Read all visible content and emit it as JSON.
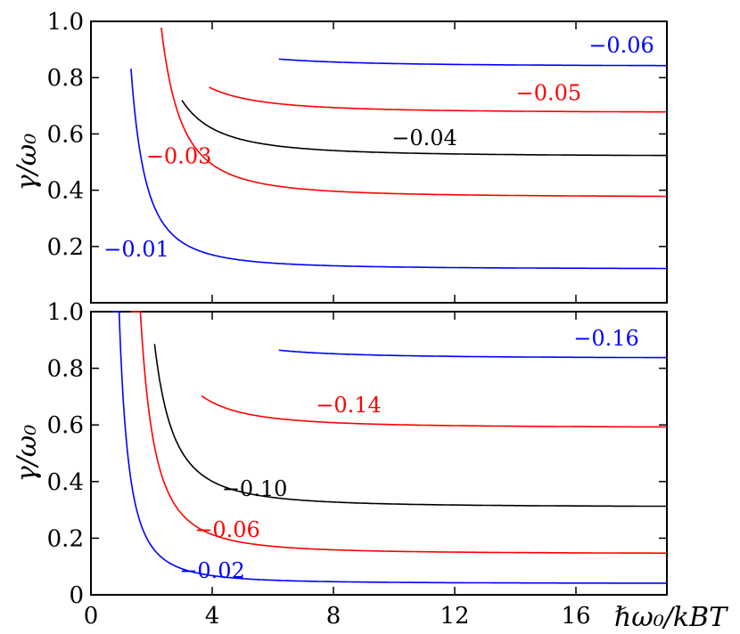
{
  "chart_data": [
    {
      "type": "line",
      "panel": "top",
      "ylabel": "γ/ω₀",
      "xlabel": "",
      "xlim": [
        0,
        19
      ],
      "ylim": [
        0.0,
        1.0
      ],
      "xticks": [
        0,
        4,
        8,
        12,
        16
      ],
      "yticks": [
        "0.2",
        "0.4",
        "0.6",
        "0.8",
        "1.0"
      ],
      "ytick_values": [
        0.2,
        0.4,
        0.6,
        0.8,
        1.0
      ],
      "series": [
        {
          "name": "−0.01",
          "color": "#0000ff",
          "asymptote": 0.12,
          "a": 0.67,
          "x0": 0.35,
          "x_start": 1.32,
          "label_x": 1.5,
          "label_y": 0.19
        },
        {
          "name": "−0.03",
          "color": "#ff0000",
          "asymptote": 0.375,
          "a": 1.05,
          "x0": 1.0,
          "x_start": 2.32,
          "label_x": 2.9,
          "label_y": 0.52
        },
        {
          "name": "−0.04",
          "color": "#000000",
          "asymptote": 0.52,
          "a": 1.15,
          "x0": 0.6,
          "x_start": 3.0,
          "label_x": 11.0,
          "label_y": 0.585
        },
        {
          "name": "−0.05",
          "color": "#ff0000",
          "asymptote": 0.675,
          "a": 1.05,
          "x0": 0.5,
          "x_start": 3.9,
          "label_x": 15.1,
          "label_y": 0.745
        },
        {
          "name": "−0.06",
          "color": "#0000ff",
          "asymptote": 0.84,
          "a": 1.0,
          "x0": 0.0,
          "x_start": 6.2,
          "label_x": 17.5,
          "label_y": 0.915
        }
      ]
    },
    {
      "type": "line",
      "panel": "bottom",
      "ylabel": "γ/ω₀",
      "xlabel": "ℏω₀/k_BT",
      "xlim": [
        0,
        19
      ],
      "ylim": [
        0.0,
        1.0
      ],
      "xticks": [
        "0",
        "4",
        "8",
        "12",
        "16"
      ],
      "xtick_values": [
        0,
        4,
        8,
        12,
        16
      ],
      "yticks": [
        "0",
        "0.2",
        "0.4",
        "0.6",
        "0.8",
        "1.0"
      ],
      "ytick_values": [
        0.0,
        0.2,
        0.4,
        0.6,
        0.8,
        1.0
      ],
      "series": [
        {
          "name": "−0.02",
          "color": "#0000ff",
          "asymptote": 0.04,
          "a": 0.38,
          "x0": 0.3,
          "x_start": 0.7,
          "label_x": 4.0,
          "label_y": 0.085
        },
        {
          "name": "−0.06",
          "color": "#ff0000",
          "asymptote": 0.145,
          "a": 0.74,
          "x0": 0.7,
          "x_start": 1.32,
          "label_x": 4.5,
          "label_y": 0.23
        },
        {
          "name": "−0.10",
          "color": "#000000",
          "asymptote": 0.31,
          "a": 0.9,
          "x0": 0.85,
          "x_start": 2.1,
          "label_x": 5.4,
          "label_y": 0.375
        },
        {
          "name": "−0.14",
          "color": "#ff0000",
          "asymptote": 0.59,
          "a": 0.95,
          "x0": 0.75,
          "x_start": 3.65,
          "label_x": 8.5,
          "label_y": 0.67
        },
        {
          "name": "−0.16",
          "color": "#0000ff",
          "asymptote": 0.835,
          "a": 0.9,
          "x0": 0.6,
          "x_start": 6.2,
          "label_x": 17.0,
          "label_y": 0.905
        }
      ]
    }
  ],
  "axis_labels": {
    "top_y": "γ/ω₀",
    "bottom_y": "γ/ω₀",
    "x": "ℏω₀/kBT"
  }
}
